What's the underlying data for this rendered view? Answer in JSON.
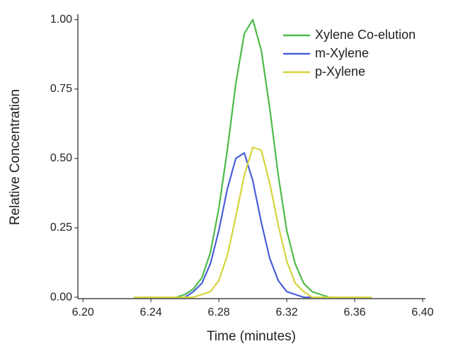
{
  "chart_data": {
    "type": "line",
    "x_label": "Time (minutes)",
    "y_label": "Relative Concentration",
    "x": [
      6.23,
      6.235,
      6.24,
      6.245,
      6.25,
      6.255,
      6.26,
      6.265,
      6.27,
      6.275,
      6.28,
      6.285,
      6.29,
      6.295,
      6.3,
      6.305,
      6.31,
      6.315,
      6.32,
      6.325,
      6.33,
      6.335,
      6.34,
      6.345,
      6.35,
      6.355,
      6.36,
      6.365,
      6.37
    ],
    "series": [
      {
        "name": "Xylene Co-elution",
        "color": "#4dbb48",
        "values": [
          0,
          0,
          0,
          0,
          0,
          0,
          0.01,
          0.03,
          0.07,
          0.16,
          0.32,
          0.53,
          0.77,
          0.95,
          1.0,
          0.89,
          0.68,
          0.44,
          0.24,
          0.12,
          0.05,
          0.02,
          0.01,
          0,
          0,
          0,
          0,
          0,
          0
        ]
      },
      {
        "name": "m-Xylene",
        "color": "#4a5fd6",
        "values": [
          0,
          0,
          0,
          0,
          0,
          0,
          0,
          0.02,
          0.05,
          0.12,
          0.24,
          0.39,
          0.5,
          0.52,
          0.42,
          0.27,
          0.14,
          0.06,
          0.02,
          0.01,
          0,
          0,
          0,
          0,
          0,
          0,
          0,
          0,
          0
        ]
      },
      {
        "name": "p-Xylene",
        "color": "#d6d43c",
        "values": [
          0,
          0,
          0,
          0,
          0,
          0,
          0,
          0,
          0.01,
          0.02,
          0.06,
          0.15,
          0.29,
          0.44,
          0.54,
          0.53,
          0.41,
          0.26,
          0.13,
          0.05,
          0.02,
          0,
          0,
          0,
          0,
          0,
          0,
          0,
          0
        ]
      }
    ],
    "xlim": [
      6.197,
      6.4
    ],
    "ylim": [
      -0.005,
      1.02
    ],
    "xticks": [
      {
        "value": 6.2,
        "label": "6.20"
      },
      6.24,
      6.28,
      6.32,
      6.36,
      {
        "value": 6.4,
        "label": "6.40"
      }
    ],
    "yticks": [
      {
        "value": 0,
        "label": "0.00"
      },
      0.25,
      {
        "value": 0.5,
        "label": "0.50"
      },
      0.75,
      {
        "value": 1,
        "label": "1.00"
      }
    ],
    "legend": "upper right",
    "grid": false
  }
}
